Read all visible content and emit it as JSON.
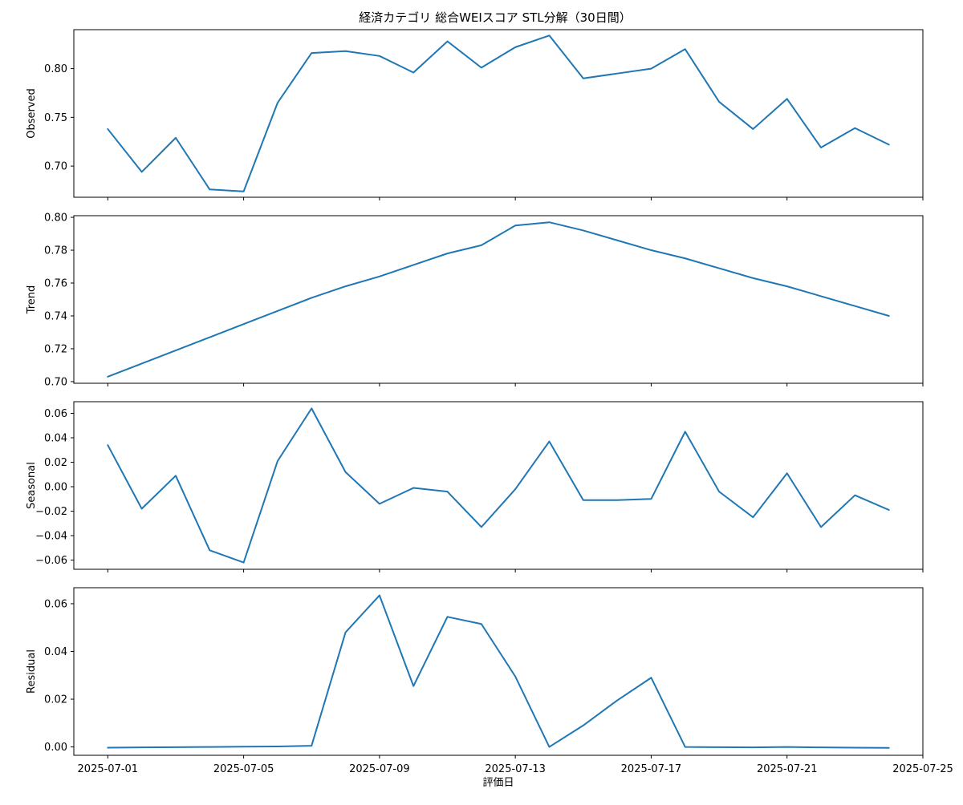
{
  "title": "経済カテゴリ 総合WEIスコア STL分解（30日間）",
  "xlabel": "評価日",
  "x_tick_labels": [
    "2025-07-01",
    "2025-07-05",
    "2025-07-09",
    "2025-07-13",
    "2025-07-17",
    "2025-07-21",
    "2025-07-25"
  ],
  "line_color": "#1f77b4",
  "chart_data": {
    "type": "line",
    "title": "経済カテゴリ 総合WEIスコア STL分解（30日間）",
    "xlabel": "評価日",
    "x": [
      "2025-07-01",
      "2025-07-02",
      "2025-07-03",
      "2025-07-04",
      "2025-07-05",
      "2025-07-06",
      "2025-07-07",
      "2025-07-08",
      "2025-07-09",
      "2025-07-10",
      "2025-07-11",
      "2025-07-12",
      "2025-07-13",
      "2025-07-14",
      "2025-07-15",
      "2025-07-16",
      "2025-07-17",
      "2025-07-18",
      "2025-07-19",
      "2025-07-20",
      "2025-07-21",
      "2025-07-22",
      "2025-07-23",
      "2025-07-24"
    ],
    "xlim": [
      "2025-06-30",
      "2025-07-25"
    ],
    "grid": false,
    "panels": [
      {
        "ylabel": "Observed",
        "ylim": [
          0.668,
          0.84
        ],
        "yticks": [
          0.7,
          0.75,
          0.8
        ],
        "ytick_labels": [
          "0.70",
          "0.75",
          "0.80"
        ],
        "values": [
          0.738,
          0.694,
          0.729,
          0.676,
          0.674,
          0.765,
          0.816,
          0.818,
          0.813,
          0.796,
          0.828,
          0.801,
          0.822,
          0.834,
          0.79,
          0.795,
          0.8,
          0.82,
          0.766,
          0.738,
          0.769,
          0.719,
          0.739,
          0.722
        ]
      },
      {
        "ylabel": "Trend",
        "ylim": [
          0.699,
          0.801
        ],
        "yticks": [
          0.7,
          0.72,
          0.74,
          0.76,
          0.78,
          0.8
        ],
        "ytick_labels": [
          "0.70",
          "0.72",
          "0.74",
          "0.76",
          "0.78",
          "0.80"
        ],
        "values": [
          0.703,
          0.711,
          0.719,
          0.727,
          0.735,
          0.743,
          0.751,
          0.758,
          0.764,
          0.771,
          0.778,
          0.783,
          0.795,
          0.797,
          0.792,
          0.786,
          0.78,
          0.775,
          0.769,
          0.763,
          0.758,
          0.752,
          0.746,
          0.74
        ]
      },
      {
        "ylabel": "Seasonal",
        "ylim": [
          -0.0675,
          0.0695
        ],
        "yticks": [
          -0.06,
          -0.04,
          -0.02,
          0.0,
          0.02,
          0.04,
          0.06
        ],
        "ytick_labels": [
          "−0.06",
          "−0.04",
          "−0.02",
          "0.00",
          "0.02",
          "0.04",
          "0.06"
        ],
        "values": [
          0.034,
          -0.018,
          0.009,
          -0.052,
          -0.062,
          0.021,
          0.064,
          0.012,
          -0.014,
          -0.001,
          -0.004,
          -0.033,
          -0.002,
          0.037,
          -0.011,
          -0.011,
          -0.01,
          0.045,
          -0.004,
          -0.025,
          0.011,
          -0.033,
          -0.007,
          -0.019
        ]
      },
      {
        "ylabel": "Residual",
        "ylim": [
          -0.0035,
          0.0667
        ],
        "yticks": [
          0.0,
          0.02,
          0.04,
          0.06
        ],
        "ytick_labels": [
          "0.00",
          "0.02",
          "0.04",
          "0.06"
        ],
        "values": [
          -0.0003,
          -0.0002,
          -0.0001,
          0.0,
          0.0001,
          0.0002,
          0.0005,
          0.048,
          0.0635,
          0.0255,
          0.0545,
          0.0515,
          0.0295,
          0.0,
          0.009,
          0.0195,
          0.029,
          0.0,
          -0.0001,
          -0.0002,
          0.0,
          -0.0002,
          -0.0003,
          -0.0004
        ]
      }
    ]
  }
}
